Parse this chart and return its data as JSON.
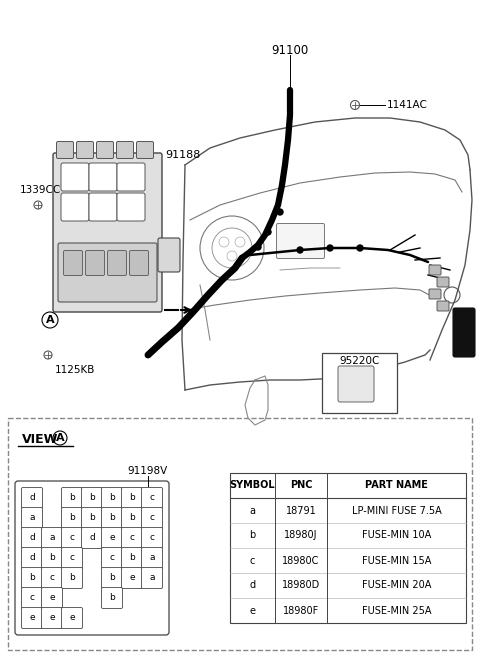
{
  "bg_color": "#ffffff",
  "parts_table": {
    "headers": [
      "SYMBOL",
      "PNC",
      "PART NAME"
    ],
    "rows": [
      [
        "a",
        "18791",
        "LP-MINI FUSE 7.5A"
      ],
      [
        "b",
        "18980J",
        "FUSE-MIN 10A"
      ],
      [
        "c",
        "18980C",
        "FUSE-MIN 15A"
      ],
      [
        "d",
        "18980D",
        "FUSE-MIN 20A"
      ],
      [
        "e",
        "18980F",
        "FUSE-MIN 25A"
      ]
    ]
  },
  "fuse_layout": [
    [
      [
        "d",
        ""
      ],
      [
        "b",
        "b",
        "b",
        "b",
        "c"
      ]
    ],
    [
      [
        "a",
        ""
      ],
      [
        "b",
        "b",
        "b",
        "b",
        "c"
      ]
    ],
    [
      [
        "d",
        "a",
        "c",
        "d",
        "e",
        "c",
        "c"
      ]
    ],
    [
      [
        "d",
        "b",
        "c",
        "",
        "c",
        "b",
        "a"
      ]
    ],
    [
      [
        "b",
        "c",
        "b",
        "",
        "b",
        "e",
        "a"
      ]
    ],
    [
      [
        "c",
        "e",
        "",
        "",
        "b",
        "",
        ""
      ]
    ],
    [
      [
        "e",
        "e",
        "e",
        "",
        "",
        "",
        ""
      ]
    ]
  ],
  "fuse_cells": [
    [
      0,
      0,
      "d"
    ],
    [
      0,
      2,
      "b"
    ],
    [
      0,
      3,
      "b"
    ],
    [
      0,
      4,
      "b"
    ],
    [
      0,
      5,
      "b"
    ],
    [
      0,
      6,
      "c"
    ],
    [
      1,
      0,
      "a"
    ],
    [
      1,
      2,
      "b"
    ],
    [
      1,
      3,
      "b"
    ],
    [
      1,
      4,
      "b"
    ],
    [
      1,
      5,
      "b"
    ],
    [
      1,
      6,
      "c"
    ],
    [
      2,
      0,
      "d"
    ],
    [
      2,
      1,
      "a"
    ],
    [
      2,
      2,
      "c"
    ],
    [
      2,
      3,
      "d"
    ],
    [
      2,
      4,
      "e"
    ],
    [
      2,
      5,
      "c"
    ],
    [
      2,
      6,
      "c"
    ],
    [
      3,
      0,
      "d"
    ],
    [
      3,
      1,
      "b"
    ],
    [
      3,
      2,
      "c"
    ],
    [
      3,
      4,
      "c"
    ],
    [
      3,
      5,
      "b"
    ],
    [
      3,
      6,
      "a"
    ],
    [
      4,
      0,
      "b"
    ],
    [
      4,
      1,
      "c"
    ],
    [
      4,
      2,
      "b"
    ],
    [
      4,
      4,
      "b"
    ],
    [
      4,
      5,
      "e"
    ],
    [
      4,
      6,
      "a"
    ],
    [
      5,
      0,
      "c"
    ],
    [
      5,
      1,
      "e"
    ],
    [
      5,
      4,
      "b"
    ],
    [
      6,
      0,
      "e"
    ],
    [
      6,
      1,
      "e"
    ],
    [
      6,
      2,
      "e"
    ]
  ]
}
